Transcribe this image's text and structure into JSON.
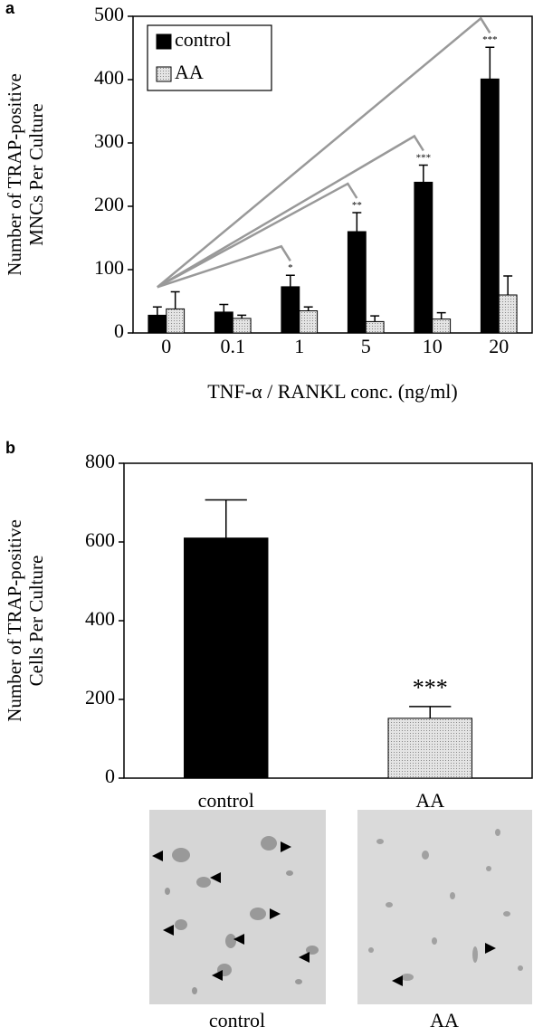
{
  "panel_labels": [
    "a",
    "b"
  ],
  "chart_data": [
    {
      "type": "bar",
      "categories": [
        "0",
        "0.1",
        "1",
        "5",
        "10",
        "20"
      ],
      "series": [
        {
          "name": "control",
          "color": "#000000",
          "values": [
            28,
            33,
            73,
            160,
            238,
            401
          ],
          "errors": [
            13,
            12,
            18,
            30,
            27,
            50
          ],
          "significance": [
            null,
            null,
            "*",
            "**",
            "***",
            "***"
          ]
        },
        {
          "name": "AA",
          "color": "#d4d4d4",
          "values": [
            38,
            23,
            35,
            18,
            22,
            60
          ],
          "errors": [
            27,
            5,
            6,
            9,
            10,
            30
          ]
        }
      ],
      "ylabel": [
        "Number of TRAP-positive",
        "MNCs Per Culture"
      ],
      "xlabel": "TNF-α / RANKL conc. (ng/ml)",
      "ylim": [
        0,
        500
      ],
      "yticks": [
        0,
        100,
        200,
        300,
        400,
        500
      ],
      "legend": "upper left"
    },
    {
      "type": "bar",
      "categories": [
        "control",
        "AA"
      ],
      "values": [
        610,
        152
      ],
      "errors": [
        97,
        30
      ],
      "colors": [
        "#000000",
        "#d4d4d4"
      ],
      "significance": [
        null,
        "***"
      ],
      "ylabel": [
        "Number of TRAP-positive",
        "Cells Per Culture"
      ],
      "ylim": [
        0,
        800
      ],
      "yticks": [
        0,
        200,
        400,
        600,
        800
      ]
    }
  ],
  "images": [
    {
      "caption": "control"
    },
    {
      "caption": "AA"
    }
  ]
}
